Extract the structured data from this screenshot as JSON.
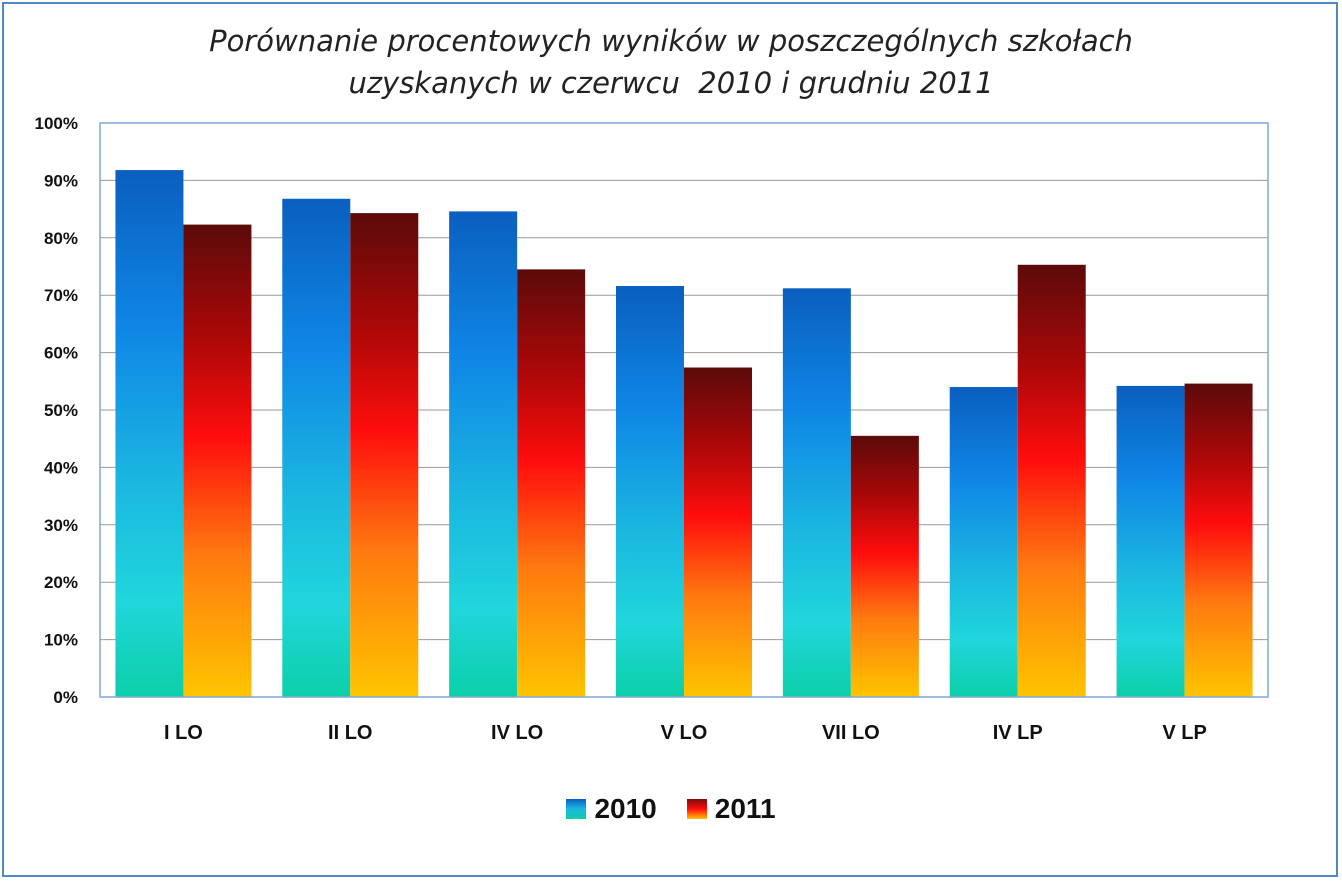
{
  "chart_data": {
    "type": "bar",
    "title_lines": [
      "Porównanie procentowych wyników w poszczególnych szkołach",
      "uzyskanych w czerwcu  2010 i grudniu 2011"
    ],
    "categories": [
      "I LO",
      "II LO",
      "IV LO",
      "V LO",
      "VII LO",
      "IV LP",
      "V LP"
    ],
    "series": [
      {
        "name": "2010",
        "values": [
          91.8,
          86.8,
          84.6,
          71.6,
          71.2,
          54.0,
          54.2
        ]
      },
      {
        "name": "2011",
        "values": [
          82.3,
          84.3,
          74.5,
          57.4,
          45.5,
          75.3,
          54.6
        ]
      }
    ],
    "ylim": [
      0,
      100
    ],
    "y_ticks": [
      "0%",
      "10%",
      "20%",
      "30%",
      "40%",
      "50%",
      "60%",
      "70%",
      "80%",
      "90%",
      "100%"
    ],
    "grid": true,
    "legend_position": "bottom",
    "colors": {
      "series_2010_top": "#0a5fbf",
      "series_2010_mid": "#1d9ae6",
      "series_2010_bottom": "#0ccfa8",
      "series_2011_top": "#5c0a0a",
      "series_2011_mid": "#ff0d0d",
      "series_2011_bottom": "#ffc400",
      "frame": "#4f88c8",
      "plot_border": "#7fa7d9",
      "grid": "#999999"
    }
  }
}
